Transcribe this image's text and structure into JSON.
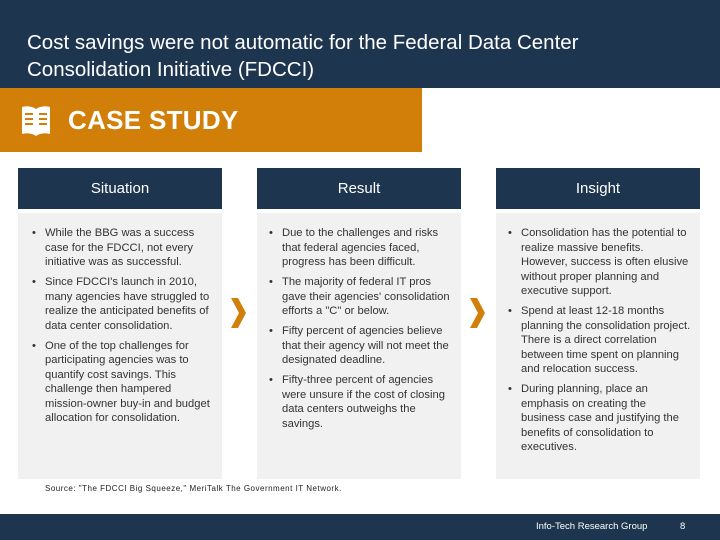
{
  "header": {
    "title": "Cost savings were not automatic for the Federal Data Center Consolidation Initiative (FDCCI)"
  },
  "banner": {
    "label": "CASE STUDY",
    "icon": "book-icon"
  },
  "columns": [
    {
      "heading": "Situation",
      "bullets": [
        "While the BBG was a success case for the FDCCI, not every initiative was as successful.",
        "Since FDCCI's launch in 2010, many agencies have struggled to realize the anticipated benefits of data center consolidation.",
        "One of the top challenges for participating agencies was to quantify cost savings. This challenge then hampered mission-owner buy-in and budget allocation for consolidation."
      ]
    },
    {
      "heading": "Result",
      "bullets": [
        "Due to the challenges and risks that federal agencies faced, progress has been difficult.",
        "The majority of federal IT pros gave their agencies' consolidation efforts a \"C\" or below.",
        "Fifty percent of agencies believe that their agency will not meet the designated deadline.",
        "Fifty-three percent of agencies were unsure if the cost of closing data centers outweighs the savings."
      ]
    },
    {
      "heading": "Insight",
      "bullets": [
        "Consolidation has the potential to realize massive benefits. However, success is often elusive without proper planning and executive support.",
        "Spend at least 12-18 months planning the consolidation project. There is a direct correlation between time spent on planning and relocation success.",
        "During planning, place an emphasis on creating the business case and justifying the benefits of consolidation to executives."
      ]
    }
  ],
  "source": "Source: \"The FDCCI Big Squeeze,\" MeriTalk The Government IT Network.",
  "footer": {
    "org": "Info-Tech Research Group",
    "page": "8"
  },
  "colors": {
    "navy": "#1e3550",
    "orange": "#d17f09",
    "panel": "#f1f1f1"
  }
}
